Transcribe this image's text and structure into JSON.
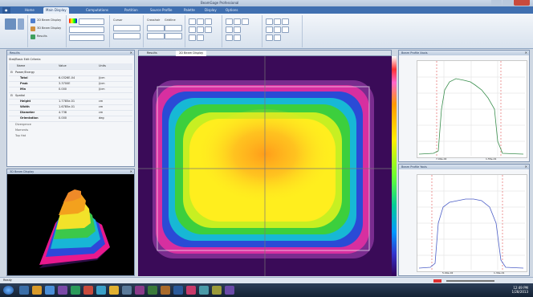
{
  "window": {
    "title": "BeamGage Professional"
  },
  "ribbon": {
    "tabs": [
      "Home",
      "Main Display",
      "Computations",
      "Partition",
      "Source Profile",
      "Palette",
      "Display",
      "Options"
    ],
    "active_tab_index": 1,
    "group1": {
      "items": [
        "2D Beam Display",
        "3D Beam Display",
        "Results"
      ]
    },
    "group2": {
      "items": [
        "Cursor",
        "Crosshair",
        "Gridline"
      ]
    }
  },
  "results_panel": {
    "title": "Results",
    "subtitle": "Stat/Basic  Edit Criteria",
    "columns": [
      "Name",
      "Value",
      "Units"
    ],
    "section1": "Power/Energy",
    "rows1": [
      {
        "name": "Total",
        "value": "6.0326E-04",
        "units": "J/cm"
      },
      {
        "name": "Peak",
        "value": "3.3700E",
        "units": "J/cm"
      },
      {
        "name": "Min",
        "value": "0.000",
        "units": "J/cm"
      }
    ],
    "section2": "Spatial",
    "rows2": [
      {
        "name": "Height",
        "value": "1.7785e-01",
        "units": "cm"
      },
      {
        "name": "Width",
        "value": "1.6785e-01",
        "units": "cm"
      },
      {
        "name": "Diameter",
        "value": "4.738",
        "units": "cm"
      },
      {
        "name": "Orientation",
        "value": "0.000",
        "units": "deg"
      }
    ],
    "extras": [
      "Divergence",
      "Moments",
      "Top Hat"
    ]
  },
  "view3d": {
    "title": "3D Beam Display"
  },
  "tabs_center": [
    "Results",
    "2D Beam Display"
  ],
  "profile_x": {
    "title": "Beam Profile Xaxis",
    "x_labels": [
      "7.00e-02",
      "1.55e-01"
    ]
  },
  "profile_y": {
    "title": "Beam Profile Yaxis",
    "x_labels": [
      "5.00e-02",
      "1.30e-01"
    ]
  },
  "statusbar": {
    "left": "Ready"
  },
  "taskbar": {
    "time": "12:49 PM",
    "date": "1/28/2013"
  },
  "colors": {
    "ribbon_tab_bar": "#3f6fb0",
    "beam_background": "#3a0b58",
    "profile_line": "#3a8f4e",
    "profile_line_y": "#4d5fc7",
    "marker_red": "#e05050"
  }
}
